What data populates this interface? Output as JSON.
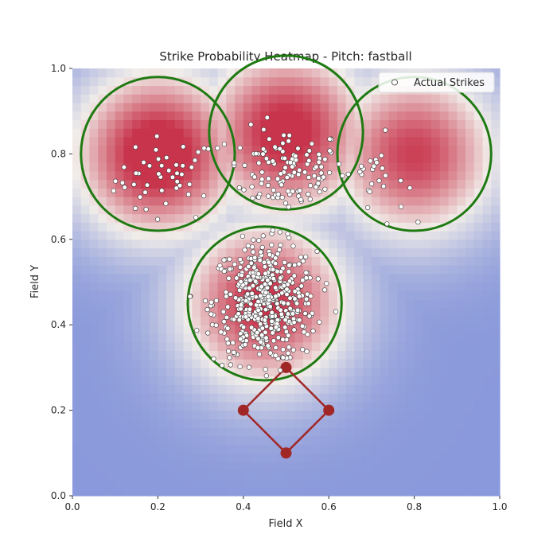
{
  "chart_data": {
    "type": "heatmap",
    "title": "Strike Probability Heatmap - Pitch: fastball",
    "xlabel": "Field X",
    "ylabel": "Field Y",
    "xlim": [
      0.0,
      1.0
    ],
    "ylim": [
      0.0,
      1.0
    ],
    "x_ticks": [
      "0.0",
      "0.2",
      "0.4",
      "0.6",
      "0.8",
      "1.0"
    ],
    "y_ticks": [
      "0.0",
      "0.2",
      "0.4",
      "0.6",
      "0.8",
      "1.0"
    ],
    "x_tick_values": [
      0.0,
      0.2,
      0.4,
      0.6,
      0.8,
      1.0
    ],
    "y_tick_values": [
      0.0,
      0.2,
      0.4,
      0.6,
      0.8,
      1.0
    ],
    "grid": false,
    "legend": {
      "placement": "top-right",
      "entries": [
        "Actual Strikes"
      ]
    },
    "colormap": {
      "low": "#6a7fd6",
      "mid": "#f1ede9",
      "high": "#c8344b"
    },
    "heat_centers": [
      {
        "x": 0.2,
        "y": 0.8,
        "peak": 1.0
      },
      {
        "x": 0.5,
        "y": 0.85,
        "peak": 0.95
      },
      {
        "x": 0.8,
        "y": 0.8,
        "peak": 0.85
      },
      {
        "x": 0.45,
        "y": 0.45,
        "peak": 0.9
      }
    ],
    "zone_circles": [
      {
        "cx": 0.2,
        "cy": 0.8,
        "r": 0.18
      },
      {
        "cx": 0.5,
        "cy": 0.85,
        "r": 0.18
      },
      {
        "cx": 0.8,
        "cy": 0.8,
        "r": 0.18
      },
      {
        "cx": 0.45,
        "cy": 0.45,
        "r": 0.18
      }
    ],
    "zone_color": "#1f7a12",
    "bases": [
      {
        "name": "home",
        "x": 0.5,
        "y": 0.1
      },
      {
        "name": "first",
        "x": 0.6,
        "y": 0.2
      },
      {
        "name": "second",
        "x": 0.5,
        "y": 0.3
      },
      {
        "name": "third",
        "x": 0.4,
        "y": 0.2
      }
    ],
    "diamond_color": "#a12727",
    "strike_counts": {
      "zone1": 45,
      "zone2": 120,
      "zone3": 25,
      "zone4": 480
    },
    "strike_clusters": [
      {
        "cx": 0.22,
        "cy": 0.74,
        "sx": 0.06,
        "sy": 0.05,
        "n": 45
      },
      {
        "cx": 0.5,
        "cy": 0.76,
        "sx": 0.07,
        "sy": 0.05,
        "n": 120
      },
      {
        "cx": 0.7,
        "cy": 0.74,
        "sx": 0.04,
        "sy": 0.05,
        "n": 25
      },
      {
        "cx": 0.45,
        "cy": 0.45,
        "sx": 0.06,
        "sy": 0.07,
        "n": 480
      }
    ]
  }
}
